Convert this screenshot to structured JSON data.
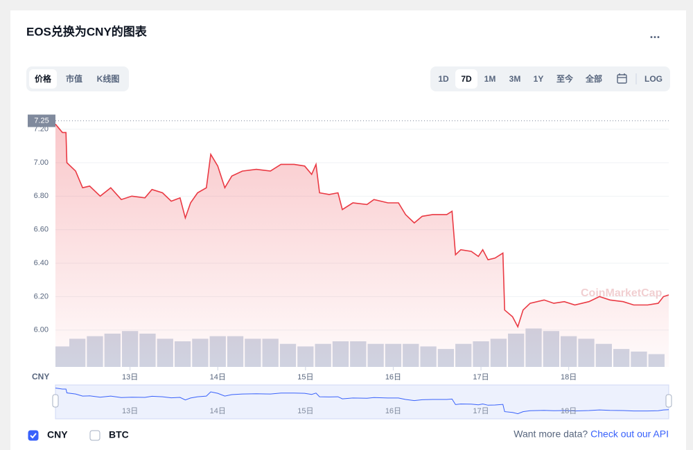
{
  "title": "EOS兑换为CNY的图表",
  "menu": "...",
  "tabs": [
    {
      "label": "价格",
      "active": true
    },
    {
      "label": "市值",
      "active": false
    },
    {
      "label": "K线图",
      "active": false
    }
  ],
  "ranges": [
    {
      "label": "1D",
      "active": false
    },
    {
      "label": "7D",
      "active": true
    },
    {
      "label": "1M",
      "active": false
    },
    {
      "label": "3M",
      "active": false
    },
    {
      "label": "1Y",
      "active": false
    },
    {
      "label": "至今",
      "active": false
    },
    {
      "label": "全部",
      "active": false
    },
    {
      "label": "LOG",
      "active": false
    }
  ],
  "chart_data": {
    "type": "line",
    "ylabel": "CNY",
    "watermark": "CoinMarketCap",
    "color": "#ea3943",
    "x": [
      12.15,
      12.23,
      12.27,
      12.28,
      12.38,
      12.46,
      12.54,
      12.66,
      12.78,
      12.9,
      13.02,
      13.17,
      13.25,
      13.37,
      13.47,
      13.57,
      13.63,
      13.69,
      13.77,
      13.87,
      13.92,
      14.0,
      14.08,
      14.16,
      14.28,
      14.44,
      14.6,
      14.72,
      14.87,
      14.99,
      15.07,
      15.12,
      15.16,
      15.27,
      15.37,
      15.42,
      15.54,
      15.7,
      15.78,
      15.94,
      16.06,
      16.14,
      16.24,
      16.33,
      16.45,
      16.61,
      16.67,
      16.71,
      16.77,
      16.89,
      16.97,
      17.02,
      17.08,
      17.16,
      17.25,
      17.27,
      17.36,
      17.42,
      17.48,
      17.56,
      17.72,
      17.83,
      17.95,
      18.07,
      18.23,
      18.35,
      18.47,
      18.62,
      18.74,
      18.9,
      19.02,
      19.08,
      19.14
    ],
    "values": [
      7.23,
      7.18,
      7.18,
      7.0,
      6.95,
      6.85,
      6.86,
      6.8,
      6.85,
      6.78,
      6.8,
      6.79,
      6.84,
      6.82,
      6.77,
      6.79,
      6.67,
      6.76,
      6.82,
      6.85,
      7.05,
      6.98,
      6.85,
      6.92,
      6.95,
      6.96,
      6.95,
      6.99,
      6.99,
      6.98,
      6.93,
      6.99,
      6.82,
      6.81,
      6.82,
      6.72,
      6.76,
      6.75,
      6.78,
      6.76,
      6.76,
      6.69,
      6.64,
      6.68,
      6.69,
      6.69,
      6.71,
      6.45,
      6.48,
      6.47,
      6.44,
      6.48,
      6.42,
      6.43,
      6.46,
      6.12,
      6.08,
      6.02,
      6.12,
      6.16,
      6.18,
      6.16,
      6.17,
      6.15,
      6.17,
      6.2,
      6.18,
      6.17,
      6.15,
      6.15,
      6.16,
      6.2,
      6.21
    ],
    "bars": {
      "color": "#cfd6e4",
      "x": [
        12.2,
        12.4,
        12.6,
        12.8,
        13.0,
        13.2,
        13.4,
        13.6,
        13.8,
        14.0,
        14.2,
        14.4,
        14.6,
        14.8,
        15.0,
        15.2,
        15.4,
        15.6,
        15.8,
        16.0,
        16.2,
        16.4,
        16.6,
        16.8,
        17.0,
        17.2,
        17.4,
        17.6,
        17.8,
        18.0,
        18.2,
        18.4,
        18.6,
        18.8,
        19.0
      ],
      "values": [
        8,
        11,
        12,
        13,
        14,
        13,
        11,
        10,
        11,
        12,
        12,
        11,
        11,
        9,
        8,
        9,
        10,
        10,
        9,
        9,
        9,
        8,
        7,
        9,
        10,
        11,
        13,
        15,
        14,
        12,
        11,
        9,
        7,
        6,
        5
      ]
    },
    "y2lim": [
      0,
      100
    ],
    "price_marker": 7.25,
    "xlim": [
      12.15,
      19.14
    ],
    "ylim": [
      5.78,
      7.31
    ],
    "xticks": [
      {
        "value": 13,
        "label": "13日"
      },
      {
        "value": 14,
        "label": "14日"
      },
      {
        "value": 15,
        "label": "15日"
      },
      {
        "value": 16,
        "label": "16日"
      },
      {
        "value": 17,
        "label": "17日"
      },
      {
        "value": 18,
        "label": "18日"
      }
    ],
    "yticks": [
      {
        "value": 6,
        "label": "6.00"
      },
      {
        "value": 6.2,
        "label": "6.20"
      },
      {
        "value": 6.4,
        "label": "6.40"
      },
      {
        "value": 6.6,
        "label": "6.60"
      },
      {
        "value": 6.8,
        "label": "6.80"
      },
      {
        "value": 7,
        "label": "7.00"
      },
      {
        "value": 7.2,
        "label": "7.20"
      }
    ],
    "grid": true
  },
  "legend": [
    {
      "label": "CNY",
      "checked": true
    },
    {
      "label": "BTC",
      "checked": false
    }
  ],
  "footer": {
    "text": "Want more data?",
    "link": "Check out our API"
  }
}
